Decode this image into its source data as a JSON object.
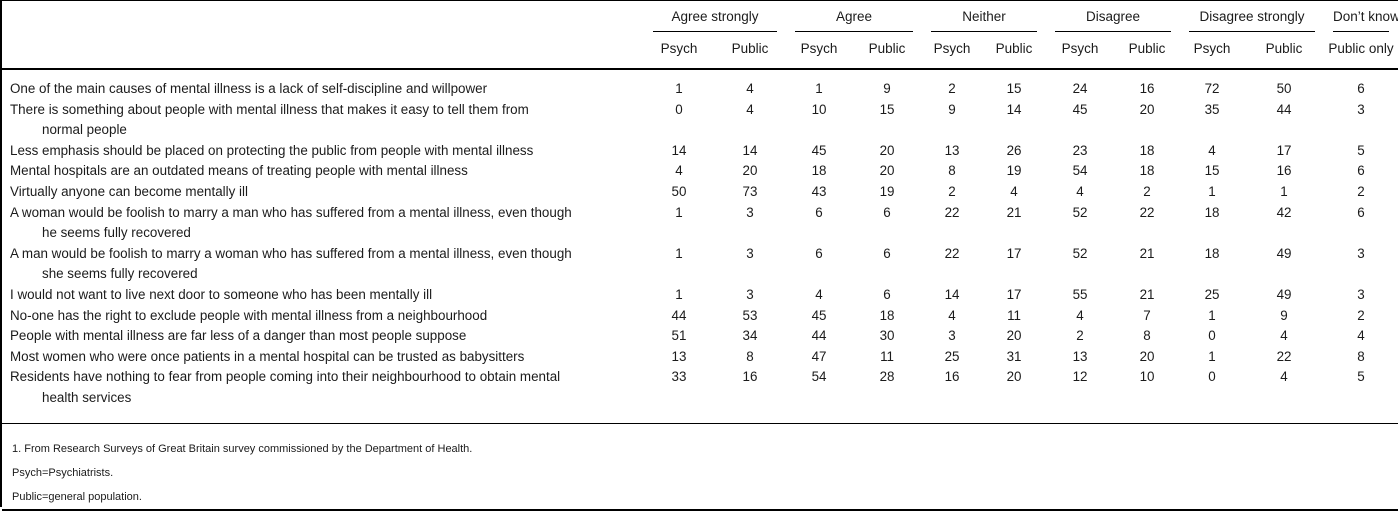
{
  "table": {
    "groups": [
      {
        "label": "Agree strongly",
        "cols": [
          "Psych",
          "Public"
        ]
      },
      {
        "label": "Agree",
        "cols": [
          "Psych",
          "Public"
        ]
      },
      {
        "label": "Neither",
        "cols": [
          "Psych",
          "Public"
        ]
      },
      {
        "label": "Disagree",
        "cols": [
          "Psych",
          "Public"
        ]
      },
      {
        "label": "Disagree strongly",
        "cols": [
          "Psych",
          "Public"
        ]
      },
      {
        "label": "Don’t know",
        "cols": [
          "Public only"
        ]
      }
    ],
    "rows": [
      {
        "lines": [
          "One of the main causes of mental illness is a lack of self-discipline and willpower"
        ],
        "values": [
          1,
          4,
          1,
          9,
          2,
          15,
          24,
          16,
          72,
          50,
          6
        ]
      },
      {
        "lines": [
          "There is something about people with mental illness that makes it easy to tell them from",
          "normal people"
        ],
        "values": [
          0,
          4,
          10,
          15,
          9,
          14,
          45,
          20,
          35,
          44,
          3
        ]
      },
      {
        "lines": [
          "Less emphasis should be placed on protecting the public from people with mental illness"
        ],
        "values": [
          14,
          14,
          45,
          20,
          13,
          26,
          23,
          18,
          4,
          17,
          5
        ]
      },
      {
        "lines": [
          "Mental hospitals are an outdated means of treating people with mental illness"
        ],
        "values": [
          4,
          20,
          18,
          20,
          8,
          19,
          54,
          18,
          15,
          16,
          6
        ]
      },
      {
        "lines": [
          "Virtually anyone can become mentally ill"
        ],
        "values": [
          50,
          73,
          43,
          19,
          2,
          4,
          4,
          2,
          1,
          1,
          2
        ]
      },
      {
        "lines": [
          "A woman would be foolish to marry a man who has suffered from a mental illness, even though",
          "he seems fully recovered"
        ],
        "values": [
          1,
          3,
          6,
          6,
          22,
          21,
          52,
          22,
          18,
          42,
          6
        ]
      },
      {
        "lines": [
          "A man would be foolish to marry a woman who has suffered from a mental illness, even though",
          "she seems fully recovered"
        ],
        "values": [
          1,
          3,
          6,
          6,
          22,
          17,
          52,
          21,
          18,
          49,
          3
        ]
      },
      {
        "lines": [
          "I would not want to live next door to someone who has been mentally ill"
        ],
        "values": [
          1,
          3,
          4,
          6,
          14,
          17,
          55,
          21,
          25,
          49,
          3
        ]
      },
      {
        "lines": [
          "No-one has the right to exclude people with mental illness from a neighbourhood"
        ],
        "values": [
          44,
          53,
          45,
          18,
          4,
          11,
          4,
          7,
          1,
          9,
          2
        ]
      },
      {
        "lines": [
          "People with mental illness are far less of a danger than most people suppose"
        ],
        "values": [
          51,
          34,
          44,
          30,
          3,
          20,
          2,
          8,
          0,
          4,
          4
        ]
      },
      {
        "lines": [
          "Most women who were once patients in a mental hospital can be trusted as babysitters"
        ],
        "values": [
          13,
          8,
          47,
          11,
          25,
          31,
          13,
          20,
          1,
          22,
          8
        ]
      },
      {
        "lines": [
          "Residents have nothing to fear from people coming into their neighbourhood to obtain mental",
          "health services"
        ],
        "values": [
          33,
          16,
          54,
          28,
          16,
          20,
          12,
          10,
          0,
          4,
          5
        ]
      }
    ],
    "footnotes": [
      "1. From Research Surveys of Great Britain survey commissioned by the Department of Health.",
      "Psych=Psychiatrists.",
      "Public=general population."
    ]
  }
}
